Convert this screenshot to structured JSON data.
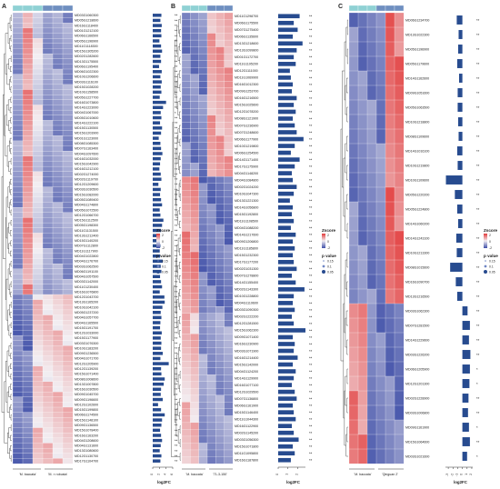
{
  "figure": {
    "panels": [
      {
        "letter": "A",
        "group_labels": [
          "'M. baccata'",
          "'M. × robusta'"
        ],
        "n_rows": 88,
        "genes": [
          "MD03G1060300",
          "MD05G1218600",
          "MD16G1118400",
          "MD01G1212100",
          "MD06G1166500",
          "MD05G1196900",
          "MD11G1118300",
          "MD15G1305200",
          "MD02G1282600",
          "MD13G1175500",
          "MD06G1195400",
          "MD06G1022300",
          "MD10G1206600",
          "MD03G1116100",
          "MD15G1028200",
          "MD10G1158500",
          "MD05G1227700",
          "MD16G1073800",
          "MD14G1223000",
          "MD04G1067000",
          "MD05G1010600",
          "MD14G1222100",
          "MD15G1130500",
          "MD15G1203900",
          "MD01G1123000",
          "MD08G1085300",
          "MD07G1163400",
          "MD04G1097600",
          "MD16G1032000",
          "MD15G1042900",
          "MD16G1212100",
          "MD02G1274000",
          "MD02G1119700",
          "MD12G1209600",
          "MD03G1030500",
          "MD15G1082000",
          "MD05G1089400",
          "MD04G1174800",
          "MD05G1072500",
          "MD12G1066700",
          "MD15G1112500",
          "MD05G1198300",
          "MD11G1131500",
          "MD13G1212400",
          "MD15G1140200",
          "MD07G1112800",
          "MD11G1117900",
          "MD04G1022800",
          "MD04G1176700",
          "MD03G1062500",
          "MD06G1191100",
          "MD04G1057500",
          "MD03G1142000",
          "MD11G1230400",
          "MD16G1076800",
          "MD12G1043700",
          "MD13G1165200",
          "MD10G1042100",
          "MD05G1237200",
          "MD04G1057700",
          "MD04G1165500",
          "MD15G1191700",
          "MD12G1033000",
          "MD15G1177900",
          "MD03G1076300",
          "MD10G1183200",
          "MD09G1236500",
          "MD04G1071700",
          "MD12G1205900",
          "MD12G1139200",
          "MD15G1071400",
          "MD08G1008600",
          "MD13G1007800",
          "MD16G1030500",
          "MD09G1045700",
          "MD09G1196600",
          "MD12G1102600",
          "MD15G1199800",
          "MD06G1174500",
          "MD15G1148100",
          "MD09G1136500",
          "MD15G1078400",
          "MD16G1163200",
          "MD04G1208600",
          "MD04G1131600",
          "MD13G1080600",
          "MD12G1130700",
          "MD17G1104700"
        ],
        "log2fc": [
          2.6,
          2.3,
          2.7,
          2.5,
          2.6,
          2.0,
          2.5,
          2.8,
          2.3,
          2.5,
          1.9,
          2.7,
          2.3,
          2.7,
          2.4,
          2.6,
          2.1,
          4.0,
          3.1,
          2.4,
          2.6,
          2.2,
          2.8,
          2.5,
          1.8,
          2.3,
          2.5,
          2.9,
          2.4,
          2.2,
          2.0,
          2.4,
          2.6,
          1.7,
          2.4,
          2.2,
          2.5,
          2.8,
          2.1,
          2.3,
          3.2,
          2.8,
          2.5,
          2.2,
          2.0,
          2.3,
          2.1,
          2.2,
          3.0,
          2.4,
          2.6,
          2.2,
          2.5,
          2.8,
          2.1,
          3.5,
          3.6,
          2.9,
          2.4,
          2.6,
          2.3,
          2.2,
          2.7,
          2.4,
          2.6,
          2.5,
          3.0,
          2.3,
          4.8,
          2.5,
          2.6,
          3.6,
          3.3,
          2.5,
          2.4,
          3.0,
          1.6,
          2.5,
          3.6,
          2.8,
          2.6,
          2.2,
          2.5,
          2.8,
          2.4,
          2.1,
          2.6,
          2.3
        ],
        "significance": [
          "**",
          "**",
          "**",
          "**",
          "**",
          "**",
          "**",
          "**",
          "**",
          "**",
          "**",
          "**",
          "**",
          "**",
          "**",
          "**",
          "**",
          "**",
          "**",
          "*",
          "**",
          "**",
          "**",
          "**",
          "**",
          "**",
          "**",
          "**",
          "**",
          "**",
          "**",
          "**",
          "**",
          "**",
          "**",
          "**",
          "**",
          "**",
          "**",
          "**",
          "**",
          "**",
          "**",
          "**",
          "**",
          "**",
          "**",
          "**",
          "**",
          "**",
          "**",
          "**",
          "**",
          "**",
          "**",
          "**",
          "**",
          "**",
          "**",
          "**",
          "**",
          "**",
          "**",
          "**",
          "**",
          "**",
          "**",
          "**",
          "**",
          "**",
          "**",
          "**",
          "**",
          "**",
          "**",
          "**",
          "**",
          "**",
          "**",
          "**",
          "**",
          "**",
          "**",
          "**",
          "**",
          "**",
          "**",
          "**"
        ],
        "log2fc_ticks": [
          "0",
          "2",
          "4",
          "6"
        ],
        "log2fc_max": 6,
        "log2fc_label": "log2FC"
      },
      {
        "letter": "B",
        "group_labels": [
          "'M. baccata'",
          "'71-3-150'"
        ],
        "n_rows": 66,
        "genes": [
          "MD11G1298700",
          "MD06G1175500",
          "MD07G1275400",
          "MD06G1135600",
          "MD13G1218600",
          "MD13G1099800",
          "MD01G1172700",
          "MD11G1195200",
          "MD12G1111000",
          "MD11G1069900",
          "MD16G1012300",
          "MD09G1253700",
          "MD16G1216500",
          "MD15G1025600",
          "MD12G1078200",
          "MD08G1121900",
          "MD07G1236900",
          "MD07G1248600",
          "MD06G1177900",
          "MD10G1219800",
          "MD06G1254500",
          "MD14G1171400",
          "MD17G1175900",
          "MD04G1148200",
          "MD04G1084800",
          "MD02G1024200",
          "MD10G1047300",
          "MD13G1221300",
          "MD14G1056800",
          "MD15G1192800",
          "MD11G1108500",
          "MD04G1088200",
          "MD14G1217600",
          "MD09G1206800",
          "MD11G1185800",
          "MD15G1232300",
          "MD17G1177200",
          "MD02G1031300",
          "MD07G1278800",
          "MD14G1155400",
          "MD02G1143300",
          "MD10G1228800",
          "MD04G1119600",
          "MD03G1090300",
          "MD02G1222200",
          "MD12G1281500",
          "MD15G1062300",
          "MD09G1071400",
          "MD16G1230900",
          "MD03G1071900",
          "MD16G1214400",
          "MD15G1142000",
          "MD04G1124200",
          "MD14G1129900",
          "MD16G1077100",
          "MD12G1029500",
          "MD07G1136800",
          "MD06G1161900",
          "MD15G1146400",
          "MD11G1044300",
          "MD16G1122900",
          "MD02G1145200",
          "MD03G1056300",
          "MD15G1071800",
          "MD11G1095800",
          "MD16G1187800"
        ],
        "log2fc": [
          2.2,
          1.6,
          2.0,
          1.5,
          2.5,
          1.9,
          1.6,
          1.8,
          1.2,
          1.3,
          1.5,
          1.4,
          1.9,
          1.6,
          1.8,
          1.5,
          1.7,
          1.9,
          2.6,
          1.7,
          1.3,
          2.2,
          1.7,
          1.4,
          1.5,
          1.9,
          1.6,
          1.2,
          1.5,
          1.4,
          1.6,
          1.3,
          1.8,
          1.5,
          1.7,
          1.5,
          1.6,
          1.9,
          1.4,
          1.8,
          2.7,
          1.6,
          1.5,
          1.7,
          1.4,
          1.6,
          2.8,
          1.5,
          1.7,
          1.6,
          2.0,
          1.5,
          1.8,
          1.6,
          1.4,
          1.7,
          1.9,
          1.5,
          1.6,
          1.8,
          1.4,
          1.6,
          2.1,
          1.5,
          1.7,
          1.3
        ],
        "significance": [
          "**",
          "**",
          "**",
          "**",
          "**",
          "**",
          "**",
          "**",
          "**",
          "**",
          "**",
          "**",
          "**",
          "**",
          "**",
          "**",
          "**",
          "**",
          "**",
          "**",
          "**",
          "**",
          "**",
          "**",
          "**",
          "**",
          "**",
          "**",
          "**",
          "**",
          "**",
          "**",
          "**",
          "**",
          "**",
          "**",
          "**",
          "**",
          "**",
          "**",
          "**",
          "**",
          "**",
          "**",
          "**",
          "**",
          "**",
          "**",
          "**",
          "**",
          "**",
          "**",
          "**",
          "**",
          "**",
          "**",
          "**",
          "**",
          "**",
          "**",
          "**",
          "**",
          "**",
          "**",
          "**",
          "**"
        ],
        "log2fc_ticks": [
          "0",
          "1",
          "2"
        ],
        "log2fc_max": 2.8,
        "log2fc_label": "log2FC"
      },
      {
        "letter": "C",
        "group_labels": [
          "'M. baccata'",
          "'Qinguan 2'"
        ],
        "n_rows": 31,
        "genes": [
          "MD06G1234700",
          "MD13G1022300",
          "MD05G1196900",
          "MD05G1179600",
          "MD14G1162600",
          "MD09G1051600",
          "MD05G1063500",
          "MD10G1218800",
          "MD08G1109600",
          "MD14G1016100",
          "MD10G1219800",
          "MD10G1109600",
          "MD05G1220200",
          "MD05G1224800",
          "MD14G1060200",
          "MD14G1243100",
          "MD10G1213300",
          "MD08G1015600",
          "MD16G1090700",
          "MD13G1216500",
          "MD03G1062300",
          "MD07G1281500",
          "MD14G1229600",
          "MD03G1226200",
          "MD06G1205900",
          "MD12G1201300",
          "MD02G1228900",
          "MD03G1006800",
          "MD09G1161900",
          "MD15G1064600",
          "MD03G1021600"
        ],
        "log2fc": [
          -1.2,
          -0.8,
          -0.9,
          -1.1,
          -0.7,
          -1.0,
          -1.0,
          -0.9,
          -0.8,
          -1.1,
          -1.0,
          -3.5,
          -1.6,
          -1.1,
          -0.9,
          -1.3,
          -1.2,
          -2.6,
          -1.4,
          -1.1,
          1.1,
          1.6,
          1.4,
          1.7,
          1.6,
          1.5,
          1.3,
          1.2,
          1.4,
          1.6,
          1.0
        ],
        "significance": [
          "**",
          "**",
          "**",
          "**",
          "**",
          "**",
          "**",
          "**",
          "**",
          "**",
          "**",
          "**",
          "**",
          "**",
          "**",
          "**",
          "**",
          "**",
          "**",
          "**",
          "**",
          "**",
          "**",
          "**",
          "*",
          "*",
          "**",
          "**",
          "*",
          "**",
          "*"
        ],
        "log2fc_ticks": [
          "-3",
          "-2",
          "-1",
          "0",
          "1",
          "2"
        ],
        "log2fc_min": -3.6,
        "log2fc_max": 2.2,
        "log2fc_label": "log2FC"
      }
    ],
    "legend": {
      "zscore_title": "Zscore",
      "zscore_ticks": [
        "2",
        "0",
        "-2"
      ],
      "pvalue_title": "p value",
      "pvalue_ticks": [
        "0.15",
        "0.1",
        "0.05"
      ]
    },
    "colors": {
      "high": "#e23b3b",
      "mid": "#f2eef2",
      "low": "#3f4fa8",
      "bar": "#274b8f",
      "group_a": "#8fd1d4",
      "group_b": "#6f8fc0"
    }
  },
  "chart_data": [
    {
      "type": "heatmap",
      "title": "",
      "panel": "A",
      "columns_groups": [
        "'M. baccata'",
        "'M. × robusta'"
      ],
      "value_scale": "Zscore",
      "zlim": [
        -2,
        2
      ],
      "bar_metric": "log2FC",
      "bar_axis_range": [
        0,
        6
      ]
    },
    {
      "type": "heatmap",
      "title": "",
      "panel": "B",
      "columns_groups": [
        "'M. baccata'",
        "'71-3-150'"
      ],
      "value_scale": "Zscore",
      "zlim": [
        -2,
        2
      ],
      "bar_metric": "log2FC",
      "bar_axis_range": [
        0,
        2.8
      ]
    },
    {
      "type": "heatmap",
      "title": "",
      "panel": "C",
      "columns_groups": [
        "'M. baccata'",
        "'Qinguan 2'"
      ],
      "value_scale": "Zscore",
      "zlim": [
        -2,
        2
      ],
      "bar_metric": "log2FC",
      "bar_axis_range": [
        -3.6,
        2.2
      ]
    }
  ]
}
